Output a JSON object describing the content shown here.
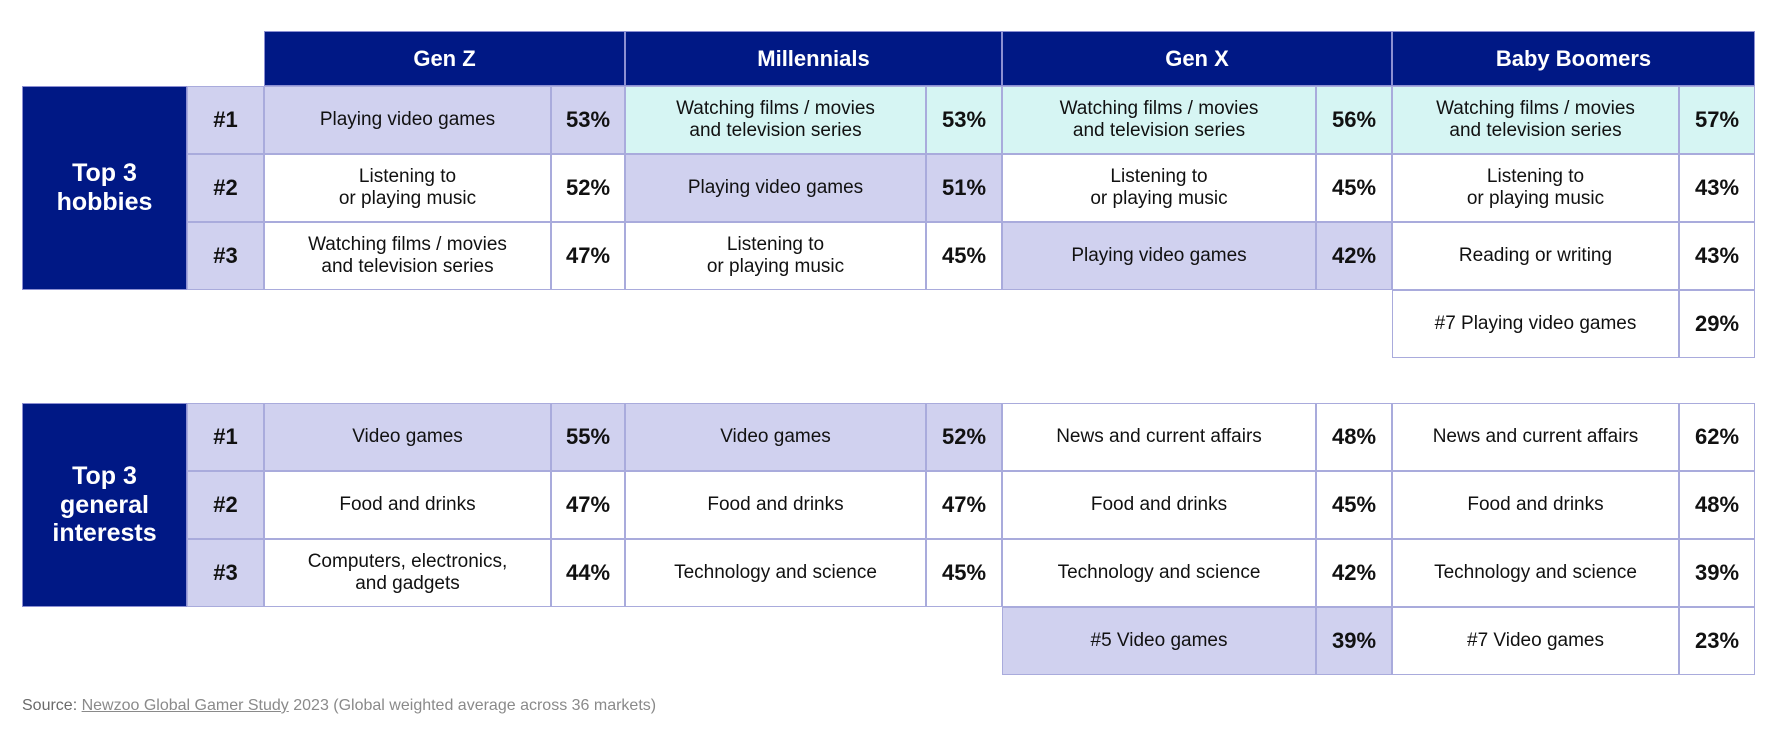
{
  "chart_data": {
    "type": "table",
    "generations": [
      "Gen Z",
      "Millennials",
      "Gen X",
      "Baby Boomers"
    ],
    "sections": [
      {
        "title": "Top 3\nhobbies",
        "ranks": [
          "#1",
          "#2",
          "#3"
        ],
        "rows": [
          [
            {
              "label": "Playing video games",
              "value": "53%",
              "highlight": "purple"
            },
            {
              "label": "Watching films / movies\nand television series",
              "value": "53%",
              "highlight": "cyan"
            },
            {
              "label": "Watching films / movies\nand television series",
              "value": "56%",
              "highlight": "cyan"
            },
            {
              "label": "Watching films / movies\nand television series",
              "value": "57%",
              "highlight": "cyan"
            }
          ],
          [
            {
              "label": "Listening to\nor playing music",
              "value": "52%",
              "highlight": "none"
            },
            {
              "label": "Playing video games",
              "value": "51%",
              "highlight": "purple"
            },
            {
              "label": "Listening to\nor playing music",
              "value": "45%",
              "highlight": "none"
            },
            {
              "label": "Listening to\nor playing music",
              "value": "43%",
              "highlight": "none"
            }
          ],
          [
            {
              "label": "Watching films / movies\nand television series",
              "value": "47%",
              "highlight": "none"
            },
            {
              "label": "Listening to\nor playing music",
              "value": "45%",
              "highlight": "none"
            },
            {
              "label": "Playing video games",
              "value": "42%",
              "highlight": "purple"
            },
            {
              "label": "Reading or writing",
              "value": "43%",
              "highlight": "none"
            }
          ]
        ],
        "extras": [
          {
            "generation": "Baby Boomers",
            "label": "#7 Playing video games",
            "value": "29%",
            "highlight": "none"
          }
        ]
      },
      {
        "title": "Top 3\ngeneral\ninterests",
        "ranks": [
          "#1",
          "#2",
          "#3"
        ],
        "rows": [
          [
            {
              "label": "Video games",
              "value": "55%",
              "highlight": "purple"
            },
            {
              "label": "Video games",
              "value": "52%",
              "highlight": "purple"
            },
            {
              "label": "News and current affairs",
              "value": "48%",
              "highlight": "none"
            },
            {
              "label": "News and current affairs",
              "value": "62%",
              "highlight": "none"
            }
          ],
          [
            {
              "label": "Food and drinks",
              "value": "47%",
              "highlight": "none"
            },
            {
              "label": "Food and drinks",
              "value": "47%",
              "highlight": "none"
            },
            {
              "label": "Food and drinks",
              "value": "45%",
              "highlight": "none"
            },
            {
              "label": "Food and drinks",
              "value": "48%",
              "highlight": "none"
            }
          ],
          [
            {
              "label": "Computers, electronics,\nand gadgets",
              "value": "44%",
              "highlight": "none"
            },
            {
              "label": "Technology and science",
              "value": "45%",
              "highlight": "none"
            },
            {
              "label": "Technology and science",
              "value": "42%",
              "highlight": "none"
            },
            {
              "label": "Technology and science",
              "value": "39%",
              "highlight": "none"
            }
          ]
        ],
        "extras": [
          {
            "generation": "Gen X",
            "label": "#5 Video games",
            "value": "39%",
            "highlight": "purple"
          },
          {
            "generation": "Baby Boomers",
            "label": "#7 Video games",
            "value": "23%",
            "highlight": "none"
          }
        ]
      }
    ]
  },
  "source": {
    "label": "Source:",
    "link_text": "Newzoo Global Gamer Study",
    "rest": " 2023 (Global weighted average across 36 markets)"
  },
  "colors": {
    "header_navy": "#001885",
    "highlight_purple": "#d0d1ef",
    "highlight_cyan": "#d6f5f3",
    "grid_border": "#a9abdc"
  }
}
